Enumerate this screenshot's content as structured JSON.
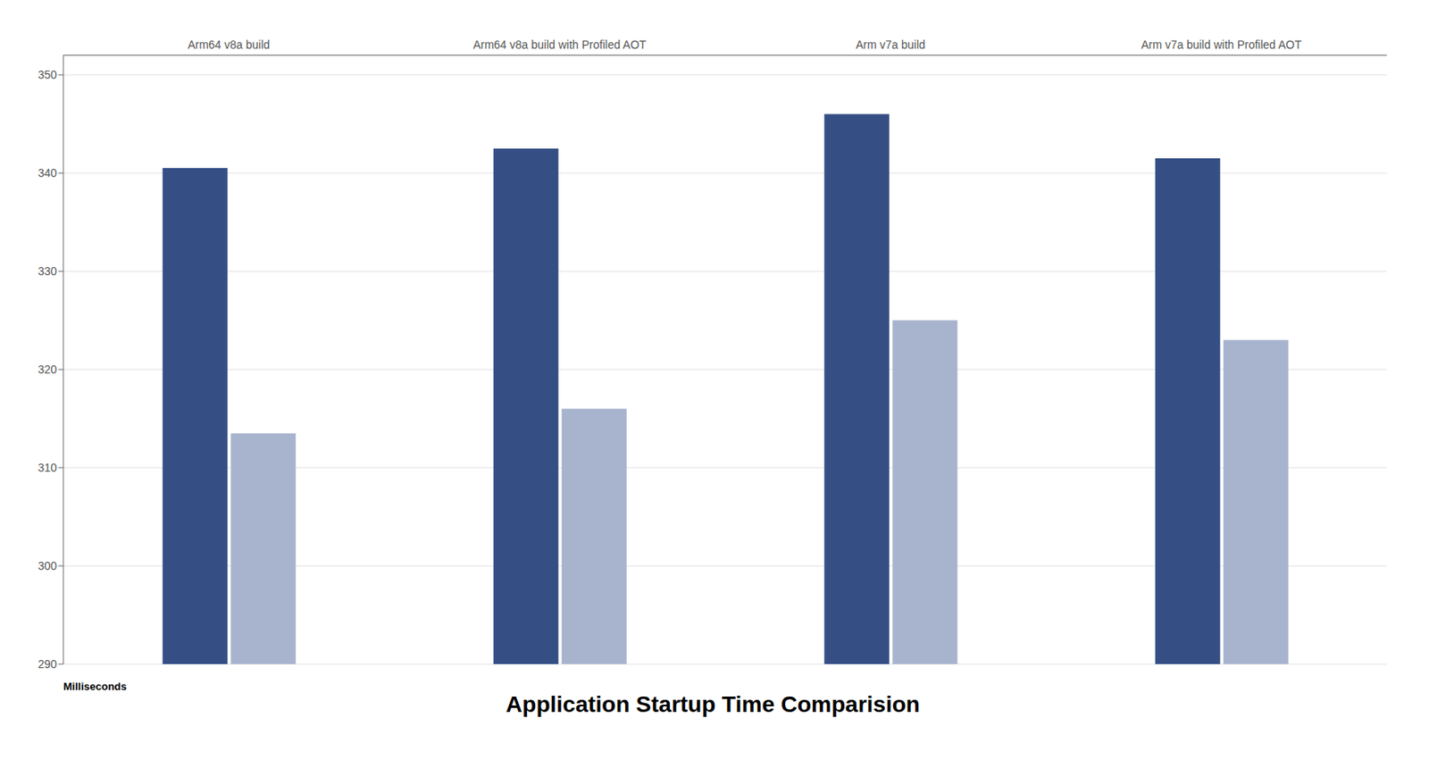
{
  "chart_data": {
    "type": "bar",
    "title": "Application Startup Time Comparision",
    "ylabel": "Milliseconds",
    "categories": [
      "Arm64 v8a build",
      "Arm64 v8a build with Profiled AOT",
      "Arm v7a build",
      "Arm v7a build with Profiled AOT"
    ],
    "series": [
      {
        "color": "#354f85",
        "values": [
          340.5,
          342.5,
          346.0,
          341.5
        ]
      },
      {
        "color": "#a8b4ce",
        "values": [
          313.5,
          316.0,
          325.0,
          323.0
        ]
      }
    ],
    "ylim": [
      290,
      352
    ],
    "yticks": [
      290,
      300,
      310,
      320,
      330,
      340,
      350
    ],
    "grid": true
  }
}
